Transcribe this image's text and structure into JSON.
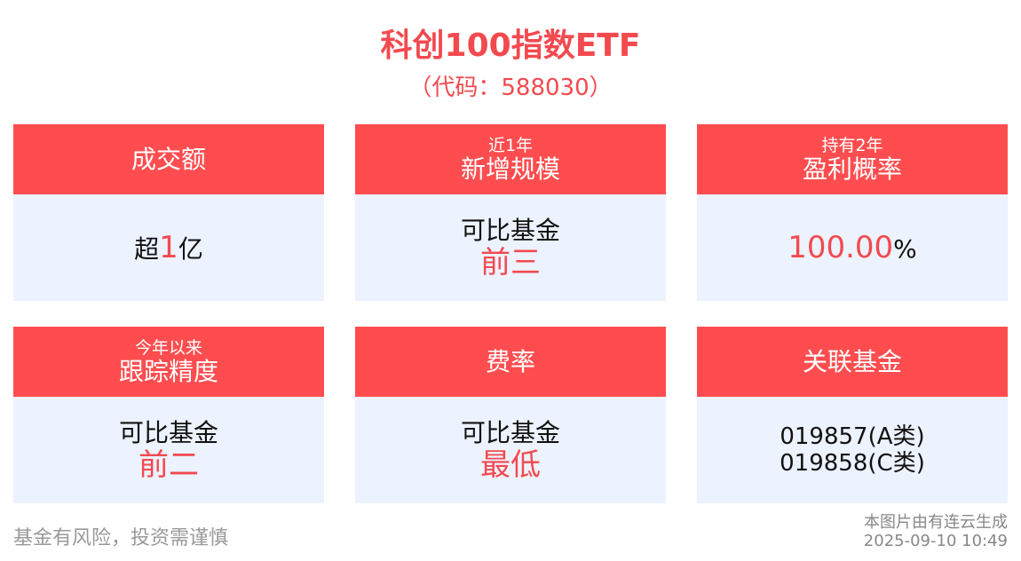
{
  "title": "科创100指数ETF",
  "code": "（代码：588030）",
  "cards": [
    {
      "sub": "",
      "label": "成交额",
      "value_prefix": "超",
      "value_highlight": "1",
      "value_suffix": "亿"
    },
    {
      "sub": "近1年",
      "label": "新增规模",
      "line1": "可比基金",
      "line2": "前三"
    },
    {
      "sub": "持有2年",
      "label": "盈利概率",
      "value_highlight": "100.00",
      "value_suffix": "%"
    },
    {
      "sub": "今年以来",
      "label": "跟踪精度",
      "line1": "可比基金",
      "line2": "前二"
    },
    {
      "sub": "",
      "label": "费率",
      "line1": "可比基金",
      "line2": "最低"
    },
    {
      "sub": "",
      "label": "关联基金",
      "line1": "019857(A类)",
      "line2": "019858(C类)"
    }
  ],
  "footer": {
    "disclaimer": "基金有风险，投资需谨慎",
    "source": "本图片由有连云生成",
    "timestamp": "2025-09-10 10:49"
  },
  "colors": {
    "accent": "#ff4d4f",
    "card_bg": "#ecf2fe"
  }
}
